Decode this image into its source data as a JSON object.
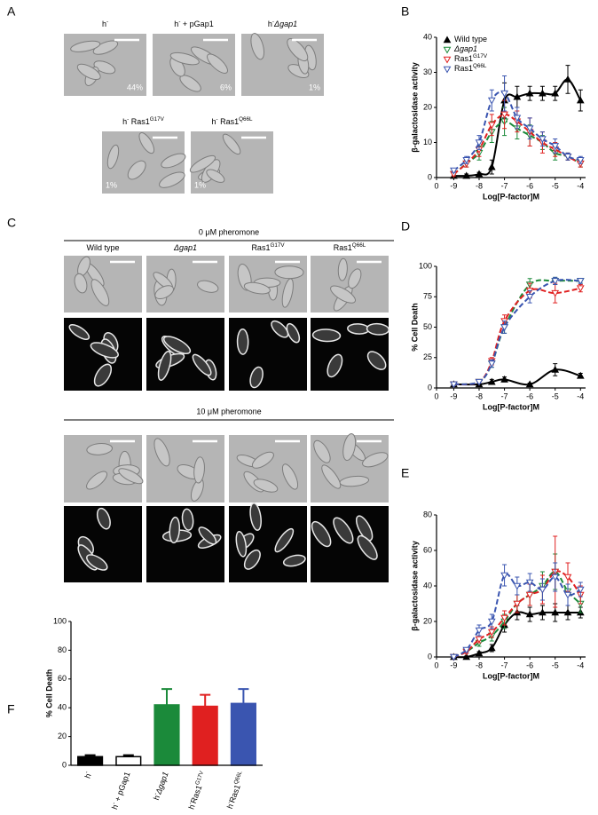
{
  "panel_labels": [
    "A",
    "B",
    "C",
    "D",
    "E",
    "F"
  ],
  "panel_A": {
    "images": [
      {
        "label": [
          {
            "t": "h",
            "f": "n"
          },
          {
            "t": "-",
            "f": "sup"
          }
        ],
        "percent": "44%"
      },
      {
        "label": [
          {
            "t": "h",
            "f": "n"
          },
          {
            "t": "-",
            "f": "sup"
          },
          {
            "t": " + pGap1",
            "f": "n"
          }
        ],
        "percent": "6%"
      },
      {
        "label": [
          {
            "t": "h",
            "f": "n"
          },
          {
            "t": "-",
            "f": "sup"
          },
          {
            "t": "Δgap1",
            "f": "i"
          }
        ],
        "percent": "1%"
      },
      {
        "label": [
          {
            "t": "h",
            "f": "n"
          },
          {
            "t": "-",
            "f": "sup"
          },
          {
            "t": " Ras1",
            "f": "n"
          },
          {
            "t": "G17V",
            "f": "sup"
          }
        ],
        "percent": "1%"
      },
      {
        "label": [
          {
            "t": "h",
            "f": "n"
          },
          {
            "t": "-",
            "f": "sup"
          },
          {
            "t": " Ras1",
            "f": "n"
          },
          {
            "t": "Q66L",
            "f": "sup"
          }
        ],
        "percent": "1%"
      }
    ]
  },
  "panel_C": {
    "conditions": [
      "0 μM pheromone",
      "10 μM pheromone"
    ],
    "columns": [
      [
        {
          "t": "Wild type",
          "f": "n"
        }
      ],
      [
        {
          "t": "Δgap1",
          "f": "i"
        }
      ],
      [
        {
          "t": "Ras1",
          "f": "n"
        },
        {
          "t": "G17V",
          "f": "sup"
        }
      ],
      [
        {
          "t": "Ras1",
          "f": "n"
        },
        {
          "t": "Q66L",
          "f": "sup"
        }
      ]
    ]
  },
  "chart_data": [
    {
      "type": "line",
      "ylabel": "β-galactosidase activity",
      "xlabel": "Log[P-factor]M",
      "x": [
        -9,
        -8.5,
        -8,
        -7.5,
        -7,
        -6.5,
        -6,
        -5.5,
        -5,
        -4.5,
        -4
      ],
      "x_break_label": "0",
      "xlim": [
        -9.4,
        -3.8
      ],
      "xticks": [
        -9,
        -8,
        -7,
        -6,
        -5,
        -4
      ],
      "ylim": [
        0,
        40
      ],
      "yticks": [
        0,
        10,
        20,
        30,
        40
      ],
      "legend": "top-left",
      "series": [
        {
          "name": [
            {
              "t": "Wild type",
              "f": "n"
            }
          ],
          "color": "#000000",
          "marker": "up-filled",
          "dash": false,
          "values": [
            0.5,
            0.5,
            1,
            3,
            22,
            23,
            24,
            24,
            24,
            28,
            22
          ],
          "errors": [
            0.5,
            0.5,
            0.5,
            2,
            5,
            3,
            2,
            2,
            2,
            4,
            3
          ]
        },
        {
          "name": [
            {
              "t": "Δgap1",
              "f": "i"
            }
          ],
          "color": "#1b8a3a",
          "marker": "down-open",
          "dash": true,
          "values": [
            1,
            4,
            7,
            13,
            16,
            14,
            12,
            10,
            7,
            6,
            4
          ],
          "errors": [
            0.5,
            1,
            2,
            3,
            4,
            3,
            3,
            2,
            2,
            1,
            1
          ]
        },
        {
          "name": [
            {
              "t": "Ras1",
              "f": "n"
            },
            {
              "t": "G17V",
              "f": "sup"
            }
          ],
          "color": "#e02020",
          "marker": "down-open",
          "dash": true,
          "values": [
            1,
            4,
            8,
            15,
            18,
            16,
            13,
            10,
            8,
            6,
            4
          ],
          "errors": [
            0.5,
            1,
            2,
            3,
            4,
            3,
            4,
            3,
            2,
            1,
            1
          ]
        },
        {
          "name": [
            {
              "t": "Ras1",
              "f": "n"
            },
            {
              "t": "Q66L",
              "f": "sup"
            }
          ],
          "color": "#3a55b0",
          "marker": "down-open",
          "dash": true,
          "values": [
            2,
            5,
            10,
            22,
            24,
            17,
            14,
            11,
            9,
            6,
            5
          ],
          "errors": [
            0.5,
            1,
            2,
            3,
            5,
            3,
            3,
            2,
            2,
            1,
            1
          ]
        }
      ]
    },
    {
      "type": "line",
      "ylabel": "% Cell Death",
      "xlabel": "Log[P-factor]M",
      "x": [
        -9,
        -8,
        -7.5,
        -7,
        -6,
        -5,
        -4
      ],
      "x_break_label": "0",
      "xlim": [
        -9.4,
        -3.8
      ],
      "xticks": [
        -9,
        -8,
        -7,
        -6,
        -5,
        -4
      ],
      "ylim": [
        0,
        100
      ],
      "yticks": [
        0,
        25,
        50,
        75,
        100
      ],
      "series": [
        {
          "name": [
            {
              "t": "Wild type",
              "f": "n"
            }
          ],
          "color": "#000000",
          "marker": "up-filled",
          "dash": false,
          "values": [
            3,
            3,
            5,
            7,
            3,
            15,
            10
          ],
          "errors": [
            1,
            1,
            2,
            2,
            1,
            5,
            2
          ]
        },
        {
          "name": [
            {
              "t": "Δgap1",
              "f": "i"
            }
          ],
          "color": "#1b8a3a",
          "marker": "down-open",
          "dash": true,
          "values": [
            3,
            5,
            20,
            50,
            85,
            88,
            88
          ],
          "errors": [
            1,
            1,
            3,
            5,
            5,
            3,
            2
          ]
        },
        {
          "name": [
            {
              "t": "Ras1",
              "f": "n"
            },
            {
              "t": "G17V",
              "f": "sup"
            }
          ],
          "color": "#e02020",
          "marker": "down-open",
          "dash": true,
          "values": [
            3,
            5,
            22,
            55,
            80,
            78,
            82
          ],
          "errors": [
            1,
            1,
            3,
            5,
            6,
            8,
            3
          ]
        },
        {
          "name": [
            {
              "t": "Ras1",
              "f": "n"
            },
            {
              "t": "Q66L",
              "f": "sup"
            }
          ],
          "color": "#3a55b0",
          "marker": "down-open",
          "dash": true,
          "values": [
            3,
            5,
            20,
            50,
            75,
            88,
            88
          ],
          "errors": [
            1,
            1,
            3,
            5,
            5,
            3,
            2
          ]
        }
      ]
    },
    {
      "type": "line",
      "ylabel": "β-galactosidase activity",
      "xlabel": "Log[P-factor]M",
      "x": [
        -9,
        -8.5,
        -8,
        -7.5,
        -7,
        -6.5,
        -6,
        -5.5,
        -5,
        -4.5,
        -4
      ],
      "x_break_label": "0",
      "xlim": [
        -9.4,
        -3.8
      ],
      "xticks": [
        -9,
        -8,
        -7,
        -6,
        -5,
        -4
      ],
      "ylim": [
        0,
        80
      ],
      "yticks": [
        0,
        20,
        40,
        60,
        80
      ],
      "series": [
        {
          "name": [
            {
              "t": "Wild type",
              "f": "n"
            }
          ],
          "color": "#000000",
          "marker": "up-filled",
          "dash": false,
          "values": [
            0,
            0,
            2,
            5,
            18,
            25,
            24,
            25,
            25,
            25,
            25
          ],
          "errors": [
            0.5,
            0.5,
            1,
            2,
            4,
            4,
            4,
            4,
            5,
            4,
            3
          ]
        },
        {
          "name": [
            {
              "t": "Δgap1",
              "f": "i"
            }
          ],
          "color": "#1b8a3a",
          "marker": "down-open",
          "dash": true,
          "values": [
            0,
            3,
            8,
            12,
            20,
            30,
            35,
            40,
            48,
            37,
            30
          ],
          "errors": [
            0.5,
            1,
            2,
            3,
            4,
            5,
            6,
            8,
            10,
            8,
            5
          ]
        },
        {
          "name": [
            {
              "t": "Ras1",
              "f": "n"
            },
            {
              "t": "G17V",
              "f": "sup"
            }
          ],
          "color": "#e02020",
          "marker": "down-open",
          "dash": true,
          "values": [
            0,
            3,
            10,
            14,
            22,
            30,
            35,
            38,
            48,
            45,
            35
          ],
          "errors": [
            0.5,
            1,
            2,
            3,
            4,
            5,
            6,
            8,
            20,
            8,
            5
          ]
        },
        {
          "name": [
            {
              "t": "Ras1",
              "f": "n"
            },
            {
              "t": "Q66L",
              "f": "sup"
            }
          ],
          "color": "#3a55b0",
          "marker": "down-open",
          "dash": true,
          "values": [
            0,
            4,
            15,
            20,
            46,
            40,
            42,
            38,
            45,
            35,
            38
          ],
          "errors": [
            0.5,
            1,
            3,
            4,
            6,
            5,
            5,
            6,
            8,
            6,
            4
          ]
        }
      ]
    },
    {
      "type": "bar",
      "ylabel": "% Cell Death",
      "categories": [
        [
          {
            "t": "h",
            "f": "n"
          },
          {
            "t": "-",
            "f": "sup"
          }
        ],
        [
          {
            "t": "h",
            "f": "n"
          },
          {
            "t": "-",
            "f": "sup"
          },
          {
            "t": " + pGap1",
            "f": "n"
          }
        ],
        [
          {
            "t": "h",
            "f": "n"
          },
          {
            "t": "-",
            "f": "sup"
          },
          {
            "t": "Δgap1",
            "f": "i"
          }
        ],
        [
          {
            "t": "h",
            "f": "n"
          },
          {
            "t": "-",
            "f": "sup"
          },
          {
            "t": "Ras1",
            "f": "n"
          },
          {
            "t": "G17V",
            "f": "sup"
          }
        ],
        [
          {
            "t": "h",
            "f": "n"
          },
          {
            "t": "-",
            "f": "sup"
          },
          {
            "t": "Ras1",
            "f": "n"
          },
          {
            "t": "Q66L",
            "f": "sup"
          }
        ]
      ],
      "values": [
        6,
        6,
        42,
        41,
        43
      ],
      "errors": [
        1,
        1,
        11,
        8,
        10
      ],
      "colors": [
        "#000000",
        "#ffffff",
        "#1b8a3a",
        "#e02020",
        "#3a55b0"
      ],
      "ylim": [
        0,
        100
      ],
      "yticks": [
        0,
        20,
        40,
        60,
        80,
        100
      ]
    }
  ]
}
